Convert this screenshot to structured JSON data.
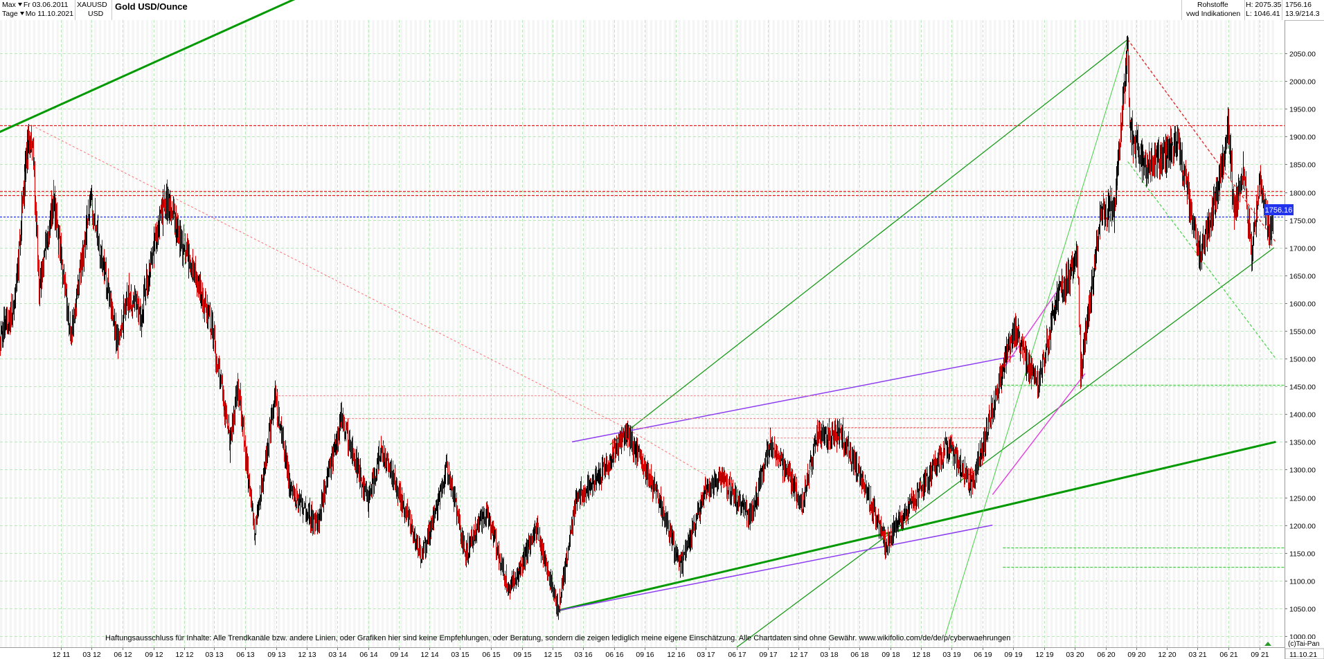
{
  "header": {
    "range_label": "Max",
    "from_date": "Fr 03.06.2011",
    "interval_label": "Tage",
    "to_date": "Mo 11.10.2021",
    "symbol": "XAUUSD",
    "currency": "USD",
    "title": "Gold USD/Ounce",
    "category": "Rohstoffe",
    "source": "vwd Indikationen",
    "high": "H: 2075.35",
    "low": "L: 1046.41",
    "last": "1756.16",
    "change": "13.9/214.3"
  },
  "price_badge": "1756.16",
  "disclaimer": "Haftungsausschluss für Inhalte: Alle Trendkanäle bzw. andere Linien, oder Grafiken hier sind keine Empfehlungen, oder Beratung, sondern die zeigen lediglich meine eigene Einschätzung. Alle Chartdaten sind ohne Gewähr.  www.wikifolio.com/de/de/p/cyberwaehrungen",
  "copyright": "(c)Tai-Pan",
  "end_date": "11.10.21",
  "colors": {
    "up_candle": "#000000",
    "down_candle": "#dd0000",
    "trend_thick": "#009900",
    "trend_thin": "#1a9a1a",
    "light_green": "#44d044",
    "violet": "#8c3cf0",
    "magenta": "#e040e0",
    "resistance_red": "#e02020",
    "last_price": "#2233ee",
    "grid": "#b8e8b8"
  },
  "chart_data": {
    "type": "candlestick",
    "title": "Gold USD/Ounce",
    "xlabel": "",
    "ylabel": "",
    "ylim": [
      980,
      2110
    ],
    "x_ticks": [
      "12 11",
      "03 12",
      "06 12",
      "09 12",
      "12 12",
      "03 13",
      "06 13",
      "09 13",
      "12 13",
      "03 14",
      "06 14",
      "09 14",
      "12 14",
      "03 15",
      "06 15",
      "09 15",
      "12 15",
      "03 16",
      "06 16",
      "09 16",
      "12 16",
      "03 17",
      "06 17",
      "09 17",
      "12 17",
      "03 18",
      "06 18",
      "09 18",
      "12 18",
      "03 19",
      "06 19",
      "09 19",
      "12 19",
      "03 20",
      "06 20",
      "09 20",
      "12 20",
      "03 21",
      "06 21",
      "09 21"
    ],
    "y_ticks": [
      1000,
      1050,
      1100,
      1150,
      1200,
      1250,
      1300,
      1350,
      1400,
      1450,
      1500,
      1550,
      1600,
      1650,
      1700,
      1750,
      1800,
      1850,
      1900,
      1950,
      2000,
      2050
    ],
    "grid": true,
    "series": [
      {
        "values": [
          [
            "2011-06-03",
            1540
          ],
          [
            "2011-07-15",
            1590
          ],
          [
            "2011-08-22",
            1880
          ],
          [
            "2011-09-06",
            1900
          ],
          [
            "2011-09-26",
            1620
          ],
          [
            "2011-11-08",
            1790
          ],
          [
            "2011-12-29",
            1540
          ],
          [
            "2012-02-28",
            1785
          ],
          [
            "2012-05-16",
            1535
          ],
          [
            "2012-06-20",
            1620
          ],
          [
            "2012-07-24",
            1580
          ],
          [
            "2012-10-05",
            1790
          ],
          [
            "2012-11-15",
            1730
          ],
          [
            "2012-12-28",
            1660
          ],
          [
            "2013-02-20",
            1560
          ],
          [
            "2013-04-16",
            1350
          ],
          [
            "2013-05-10",
            1450
          ],
          [
            "2013-06-28",
            1190
          ],
          [
            "2013-08-28",
            1430
          ],
          [
            "2013-10-15",
            1260
          ],
          [
            "2013-12-31",
            1200
          ],
          [
            "2014-03-14",
            1390
          ],
          [
            "2014-06-01",
            1245
          ],
          [
            "2014-07-10",
            1340
          ],
          [
            "2014-09-30",
            1210
          ],
          [
            "2014-11-07",
            1140
          ],
          [
            "2015-01-22",
            1305
          ],
          [
            "2015-03-17",
            1150
          ],
          [
            "2015-05-18",
            1230
          ],
          [
            "2015-07-24",
            1080
          ],
          [
            "2015-10-14",
            1190
          ],
          [
            "2015-12-17",
            1050
          ],
          [
            "2016-02-11",
            1250
          ],
          [
            "2016-05-02",
            1300
          ],
          [
            "2016-07-06",
            1370
          ],
          [
            "2016-10-07",
            1255
          ],
          [
            "2016-12-15",
            1125
          ],
          [
            "2017-02-27",
            1260
          ],
          [
            "2017-04-17",
            1290
          ],
          [
            "2017-07-10",
            1210
          ],
          [
            "2017-09-08",
            1350
          ],
          [
            "2017-12-12",
            1240
          ],
          [
            "2018-01-25",
            1365
          ],
          [
            "2018-04-11",
            1360
          ],
          [
            "2018-06-28",
            1250
          ],
          [
            "2018-08-16",
            1165
          ],
          [
            "2018-10-26",
            1235
          ],
          [
            "2019-02-20",
            1345
          ],
          [
            "2019-05-02",
            1270
          ],
          [
            "2019-08-07",
            1500
          ],
          [
            "2019-09-04",
            1555
          ],
          [
            "2019-11-12",
            1450
          ],
          [
            "2020-01-08",
            1610
          ],
          [
            "2020-03-09",
            1680
          ],
          [
            "2020-03-19",
            1475
          ],
          [
            "2020-05-18",
            1765
          ],
          [
            "2020-06-26",
            1770
          ],
          [
            "2020-08-06",
            2070
          ],
          [
            "2020-08-11",
            1910
          ],
          [
            "2020-09-24",
            1850
          ],
          [
            "2020-11-09",
            1855
          ],
          [
            "2020-12-30",
            1895
          ],
          [
            "2021-03-08",
            1685
          ],
          [
            "2021-04-22",
            1790
          ],
          [
            "2021-06-01",
            1910
          ],
          [
            "2021-06-17",
            1770
          ],
          [
            "2021-07-15",
            1830
          ],
          [
            "2021-08-09",
            1690
          ],
          [
            "2021-09-03",
            1830
          ],
          [
            "2021-09-29",
            1725
          ],
          [
            "2021-10-11",
            1756
          ]
        ]
      }
    ],
    "horizontal_levels": [
      {
        "value": 1921,
        "style": "red-dashed"
      },
      {
        "value": 1802,
        "style": "red-dashed"
      },
      {
        "value": 1795,
        "style": "red-dashed"
      },
      {
        "value": 1756.16,
        "style": "blue-dashed"
      },
      {
        "value": 1453,
        "style": "green-dashed"
      },
      {
        "value": 1160,
        "style": "green-dashed"
      },
      {
        "value": 1125,
        "style": "green-dashed"
      }
    ]
  }
}
